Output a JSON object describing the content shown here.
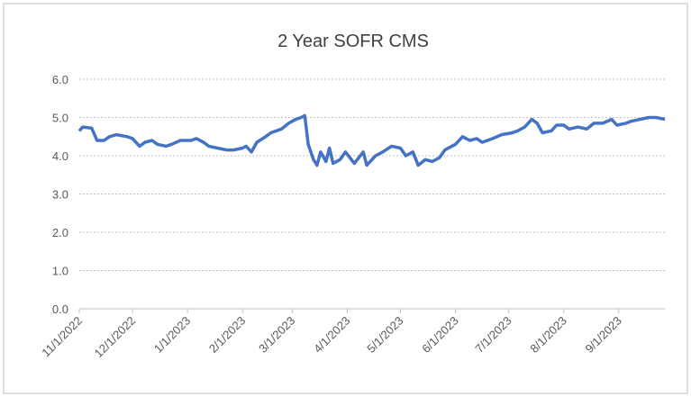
{
  "chart_data": {
    "type": "line",
    "title": "2 Year SOFR CMS",
    "x": [
      "2022-11-01",
      "2022-11-03",
      "2022-11-08",
      "2022-11-11",
      "2022-11-15",
      "2022-11-18",
      "2022-11-22",
      "2022-11-28",
      "2022-12-01",
      "2022-12-05",
      "2022-12-08",
      "2022-12-12",
      "2022-12-15",
      "2022-12-20",
      "2022-12-23",
      "2022-12-28",
      "2023-01-03",
      "2023-01-06",
      "2023-01-10",
      "2023-01-13",
      "2023-01-18",
      "2023-01-23",
      "2023-01-27",
      "2023-02-01",
      "2023-02-03",
      "2023-02-06",
      "2023-02-09",
      "2023-02-14",
      "2023-02-17",
      "2023-02-23",
      "2023-02-27",
      "2023-03-01",
      "2023-03-03",
      "2023-03-06",
      "2023-03-08",
      "2023-03-09",
      "2023-03-10",
      "2023-03-13",
      "2023-03-15",
      "2023-03-17",
      "2023-03-20",
      "2023-03-22",
      "2023-03-24",
      "2023-03-28",
      "2023-03-31",
      "2023-04-05",
      "2023-04-10",
      "2023-04-12",
      "2023-04-17",
      "2023-04-21",
      "2023-04-26",
      "2023-05-01",
      "2023-05-04",
      "2023-05-08",
      "2023-05-11",
      "2023-05-15",
      "2023-05-19",
      "2023-05-23",
      "2023-05-26",
      "2023-06-01",
      "2023-06-05",
      "2023-06-09",
      "2023-06-13",
      "2023-06-16",
      "2023-06-22",
      "2023-06-27",
      "2023-07-03",
      "2023-07-06",
      "2023-07-10",
      "2023-07-12",
      "2023-07-14",
      "2023-07-17",
      "2023-07-20",
      "2023-07-25",
      "2023-07-28",
      "2023-08-01",
      "2023-08-04",
      "2023-08-09",
      "2023-08-14",
      "2023-08-18",
      "2023-08-23",
      "2023-08-28",
      "2023-08-31",
      "2023-09-05",
      "2023-09-08",
      "2023-09-13",
      "2023-09-18",
      "2023-09-22",
      "2023-09-27"
    ],
    "series": [
      {
        "name": "2 Year SOFR CMS",
        "color": "#4472c4",
        "values": [
          4.65,
          4.75,
          4.72,
          4.4,
          4.4,
          4.5,
          4.55,
          4.5,
          4.45,
          4.25,
          4.35,
          4.4,
          4.3,
          4.25,
          4.3,
          4.4,
          4.4,
          4.45,
          4.35,
          4.25,
          4.2,
          4.15,
          4.15,
          4.2,
          4.25,
          4.1,
          4.35,
          4.5,
          4.6,
          4.7,
          4.85,
          4.9,
          4.95,
          5.0,
          5.05,
          4.7,
          4.3,
          3.9,
          3.75,
          4.1,
          3.85,
          4.2,
          3.8,
          3.9,
          4.1,
          3.8,
          4.1,
          3.75,
          4.0,
          4.1,
          4.25,
          4.2,
          4.0,
          4.1,
          3.75,
          3.9,
          3.85,
          3.95,
          4.15,
          4.3,
          4.5,
          4.4,
          4.45,
          4.35,
          4.45,
          4.55,
          4.6,
          4.65,
          4.75,
          4.85,
          4.95,
          4.85,
          4.6,
          4.65,
          4.8,
          4.8,
          4.7,
          4.75,
          4.7,
          4.85,
          4.85,
          4.95,
          4.8,
          4.85,
          4.9,
          4.95,
          5.0,
          5.0,
          4.95
        ]
      }
    ],
    "xlim": [
      "2022-11-01",
      "2023-09-27"
    ],
    "xticks": [
      {
        "value": "2022-11-01",
        "label": "11/1/2022"
      },
      {
        "value": "2022-12-01",
        "label": "12/1/2022"
      },
      {
        "value": "2023-01-01",
        "label": "1/1/2023"
      },
      {
        "value": "2023-02-01",
        "label": "2/1/2023"
      },
      {
        "value": "2023-03-01",
        "label": "3/1/2023"
      },
      {
        "value": "2023-04-01",
        "label": "4/1/2023"
      },
      {
        "value": "2023-05-01",
        "label": "5/1/2023"
      },
      {
        "value": "2023-06-01",
        "label": "6/1/2023"
      },
      {
        "value": "2023-07-01",
        "label": "7/1/2023"
      },
      {
        "value": "2023-08-01",
        "label": "8/1/2023"
      },
      {
        "value": "2023-09-01",
        "label": "9/1/2023"
      }
    ],
    "ylim": [
      0,
      6
    ],
    "yticks": [
      {
        "value": 0,
        "label": "0.0"
      },
      {
        "value": 1,
        "label": "1.0"
      },
      {
        "value": 2,
        "label": "2.0"
      },
      {
        "value": 3,
        "label": "3.0"
      },
      {
        "value": 4,
        "label": "4.0"
      },
      {
        "value": 5,
        "label": "5.0"
      },
      {
        "value": 6,
        "label": "6.0"
      }
    ],
    "grid": true
  }
}
